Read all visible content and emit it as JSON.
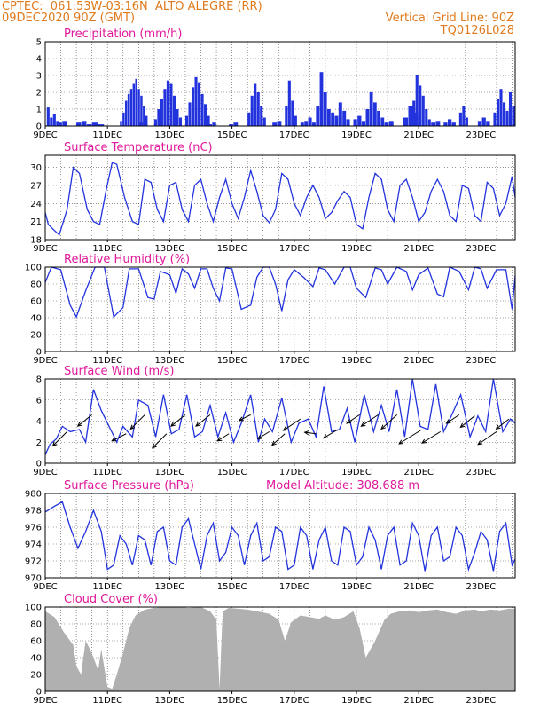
{
  "header": {
    "line1_left": "CPTEC:  061:53W-03:16N  ALTO ALEGRE (RR)",
    "line2_left": "09DEC2020 90Z (GMT)",
    "line1_right": "Vertical Grid Line: 90Z",
    "line2_right": "TQ0126L028"
  },
  "colors": {
    "header": "#e07a1c",
    "title": "#e0189a",
    "line": "#2233dd",
    "cloud": "#b0b0b0"
  },
  "x_ticks": [
    "9DEC",
    "11DEC",
    "13DEC",
    "15DEC",
    "17DEC",
    "19DEC",
    "21DEC",
    "23DEC"
  ],
  "chart_data": [
    {
      "type": "bar",
      "title": "Precipitation   (mm/h)",
      "ylim": [
        0,
        5
      ],
      "yticks": [
        0,
        1,
        2,
        3,
        4,
        5
      ],
      "x_start_day": 9,
      "x_end_day": 24.1,
      "events": [
        {
          "day": 9.05,
          "width": 0.4,
          "values": [
            1.1,
            0.5,
            0.7,
            0.3
          ]
        },
        {
          "day": 9.4,
          "width": 0.3,
          "values": [
            0.2,
            0.3
          ]
        },
        {
          "day": 10.0,
          "width": 0.5,
          "values": [
            0.2,
            0.3,
            0.1
          ]
        },
        {
          "day": 10.5,
          "width": 0.4,
          "values": [
            0.2,
            0.1
          ]
        },
        {
          "day": 11.4,
          "width": 0.9,
          "values": [
            0.3,
            0.8,
            1.5,
            1.9,
            2.2,
            2.5,
            2.8,
            2.2,
            1.8,
            1.2,
            0.6
          ]
        },
        {
          "day": 12.0,
          "width": 0.3,
          "values": [
            0.2,
            0.1
          ]
        },
        {
          "day": 12.5,
          "width": 0.9,
          "values": [
            0.4,
            1.0,
            1.6,
            2.2,
            2.7,
            2.5,
            1.8,
            1.0,
            0.5
          ]
        },
        {
          "day": 13.5,
          "width": 0.8,
          "values": [
            0.6,
            1.4,
            2.3,
            2.9,
            2.6,
            1.9,
            1.3,
            0.6
          ]
        },
        {
          "day": 14.1,
          "width": 0.4,
          "values": [
            0.2,
            0.1,
            0.2
          ]
        },
        {
          "day": 14.9,
          "width": 0.3,
          "values": [
            0.1,
            0.2
          ]
        },
        {
          "day": 15.5,
          "width": 0.6,
          "values": [
            0.8,
            1.8,
            2.5,
            2.0,
            1.2,
            0.5
          ]
        },
        {
          "day": 16.3,
          "width": 0.3,
          "values": [
            0.2,
            0.3
          ]
        },
        {
          "day": 16.7,
          "width": 0.4,
          "values": [
            1.2,
            2.7,
            1.5,
            0.6
          ]
        },
        {
          "day": 17.2,
          "width": 0.5,
          "values": [
            0.2,
            0.3,
            0.5,
            0.2
          ]
        },
        {
          "day": 17.7,
          "width": 0.6,
          "values": [
            1.2,
            3.2,
            2.0,
            1.0,
            0.8
          ]
        },
        {
          "day": 18.3,
          "width": 0.5,
          "values": [
            0.6,
            1.4,
            0.9,
            0.4
          ]
        },
        {
          "day": 18.9,
          "width": 0.4,
          "values": [
            0.4,
            0.6,
            0.3
          ]
        },
        {
          "day": 19.3,
          "width": 0.6,
          "values": [
            1.0,
            2.0,
            1.4,
            0.9,
            0.5
          ]
        },
        {
          "day": 19.9,
          "width": 0.3,
          "values": [
            0.2,
            0.3
          ]
        },
        {
          "day": 20.5,
          "width": 0.5,
          "values": [
            0.5,
            1.2,
            0.8
          ]
        },
        {
          "day": 20.8,
          "width": 0.6,
          "values": [
            1.5,
            3.0,
            2.4,
            1.8,
            1.0,
            0.4
          ]
        },
        {
          "day": 21.4,
          "width": 0.3,
          "values": [
            0.2,
            0.3
          ]
        },
        {
          "day": 21.8,
          "width": 0.4,
          "values": [
            0.2,
            0.4,
            0.2
          ]
        },
        {
          "day": 22.3,
          "width": 0.3,
          "values": [
            0.8,
            1.2,
            0.5
          ]
        },
        {
          "day": 22.9,
          "width": 0.4,
          "values": [
            0.3,
            0.5,
            0.3
          ]
        },
        {
          "day": 23.4,
          "width": 0.5,
          "values": [
            0.8,
            1.6,
            2.2,
            1.4,
            0.6
          ]
        },
        {
          "day": 23.8,
          "width": 0.3,
          "values": [
            0.9,
            2.0,
            1.2
          ]
        }
      ]
    },
    {
      "type": "line",
      "title": "Surface Temperature (nC)",
      "ylim": [
        18,
        32
      ],
      "yticks": [
        18,
        21,
        24,
        27,
        30
      ],
      "x": [
        9.0,
        9.1,
        9.3,
        9.45,
        9.7,
        9.9,
        10.1,
        10.35,
        10.55,
        10.75,
        10.95,
        11.15,
        11.3,
        11.55,
        11.8,
        12.0,
        12.2,
        12.4,
        12.6,
        12.8,
        13.0,
        13.2,
        13.4,
        13.6,
        13.8,
        14.0,
        14.2,
        14.4,
        14.6,
        14.8,
        15.0,
        15.2,
        15.4,
        15.6,
        15.8,
        16.0,
        16.2,
        16.4,
        16.6,
        16.8,
        17.0,
        17.2,
        17.4,
        17.6,
        17.8,
        18.0,
        18.2,
        18.4,
        18.6,
        18.8,
        19.0,
        19.2,
        19.4,
        19.6,
        19.8,
        20.0,
        20.2,
        20.4,
        20.6,
        20.8,
        21.0,
        21.2,
        21.4,
        21.6,
        21.8,
        22.0,
        22.2,
        22.4,
        22.6,
        22.8,
        23.0,
        23.2,
        23.4,
        23.6,
        23.8,
        24.0,
        24.1
      ],
      "y": [
        22.5,
        20.5,
        19.5,
        18.8,
        23,
        30,
        29,
        23,
        21,
        20.5,
        26,
        30.8,
        30.5,
        25,
        21,
        20.5,
        28,
        27.5,
        23,
        21,
        27,
        27.5,
        23,
        21,
        27,
        28,
        24,
        21,
        25,
        28,
        24,
        21.5,
        25,
        29.5,
        26,
        22,
        20.8,
        23,
        29,
        28,
        24,
        22,
        25,
        27,
        25,
        21.5,
        22.5,
        24.5,
        26,
        25,
        20.5,
        19.8,
        25,
        29,
        28,
        23,
        21,
        27,
        28,
        25,
        21,
        22.5,
        26,
        28,
        26,
        22,
        21,
        27,
        26.5,
        22,
        21,
        27.5,
        26.5,
        22,
        24,
        28.5,
        25
      ]
    },
    {
      "type": "line",
      "title": "Relative Humidity (%)",
      "ylim": [
        0,
        100
      ],
      "yticks": [
        0,
        20,
        40,
        60,
        80,
        100
      ],
      "x": [
        9.0,
        9.2,
        9.5,
        9.8,
        10.0,
        10.3,
        10.6,
        10.9,
        11.2,
        11.5,
        11.7,
        12.0,
        12.3,
        12.5,
        12.7,
        13.0,
        13.2,
        13.4,
        13.6,
        13.8,
        14.0,
        14.2,
        14.4,
        14.6,
        14.8,
        15.0,
        15.3,
        15.6,
        15.8,
        16.0,
        16.2,
        16.4,
        16.6,
        16.8,
        17.0,
        17.3,
        17.6,
        17.8,
        18.0,
        18.3,
        18.6,
        18.8,
        19.0,
        19.3,
        19.6,
        19.8,
        20.0,
        20.3,
        20.6,
        20.8,
        21.0,
        21.3,
        21.6,
        21.8,
        22.0,
        22.3,
        22.6,
        22.8,
        23.0,
        23.2,
        23.5,
        23.8,
        24.0,
        24.1
      ],
      "y": [
        82,
        100,
        97,
        55,
        41,
        72,
        100,
        100,
        41,
        52,
        98,
        98,
        64,
        62,
        95,
        91,
        69,
        98,
        92,
        75,
        98,
        98,
        75,
        60,
        99,
        98,
        50,
        55,
        88,
        100,
        100,
        80,
        48,
        85,
        97,
        88,
        77,
        99,
        97,
        80,
        100,
        100,
        75,
        64,
        99,
        97,
        80,
        100,
        95,
        73,
        91,
        99,
        68,
        65,
        100,
        95,
        73,
        100,
        98,
        75,
        97,
        97,
        50,
        90
      ]
    },
    {
      "type": "line",
      "title": "Surface Wind (m/s)",
      "ylim": [
        0,
        8
      ],
      "yticks": [
        0,
        2,
        4,
        6,
        8
      ],
      "x": [
        9.0,
        9.15,
        9.35,
        9.55,
        9.8,
        10.1,
        10.3,
        10.55,
        10.8,
        11.05,
        11.3,
        11.5,
        11.8,
        12.0,
        12.3,
        12.55,
        12.8,
        13.05,
        13.3,
        13.55,
        13.8,
        14.05,
        14.3,
        14.55,
        14.8,
        15.05,
        15.3,
        15.6,
        15.85,
        16.05,
        16.3,
        16.6,
        16.9,
        17.15,
        17.45,
        17.7,
        17.95,
        18.2,
        18.45,
        18.7,
        18.95,
        19.25,
        19.55,
        19.8,
        20.05,
        20.3,
        20.55,
        20.8,
        21.05,
        21.3,
        21.55,
        21.8,
        22.05,
        22.35,
        22.65,
        22.9,
        23.15,
        23.4,
        23.7,
        23.95,
        24.1
      ],
      "y": [
        0.8,
        1.8,
        2.3,
        3.5,
        3.0,
        3.2,
        2.0,
        7.0,
        5.0,
        3.5,
        2.0,
        3.5,
        2.5,
        6.0,
        5.5,
        2.5,
        6.5,
        2.8,
        3.2,
        6.5,
        2.5,
        3.0,
        5.5,
        2.5,
        4.8,
        2.0,
        3.8,
        6.5,
        2.0,
        4.2,
        3.0,
        6.2,
        2.0,
        3.8,
        4.2,
        2.5,
        7.3,
        3.0,
        3.2,
        5.2,
        2.0,
        6.5,
        3.0,
        5.5,
        3.0,
        7.0,
        2.5,
        8.0,
        3.5,
        3.2,
        7.5,
        3.0,
        4.5,
        6.5,
        2.5,
        4.5,
        3.0,
        8.0,
        3.0,
        4.2,
        3.8
      ],
      "arrows": [
        {
          "day": 9.7,
          "u": -1.0,
          "v": -1.0
        },
        {
          "day": 10.5,
          "u": -1.0,
          "v": -0.8
        },
        {
          "day": 11.6,
          "u": -1.0,
          "v": -0.5
        },
        {
          "day": 12.2,
          "u": -1.0,
          "v": -1.0
        },
        {
          "day": 12.9,
          "u": -1.0,
          "v": -1.0
        },
        {
          "day": 13.5,
          "u": -1.0,
          "v": -0.8
        },
        {
          "day": 14.3,
          "u": -1.0,
          "v": -0.8
        },
        {
          "day": 14.9,
          "u": -0.8,
          "v": -0.5
        },
        {
          "day": 15.6,
          "u": -0.8,
          "v": -0.4
        },
        {
          "day": 16.2,
          "u": -0.8,
          "v": -0.5
        },
        {
          "day": 16.7,
          "u": -0.9,
          "v": -0.8
        },
        {
          "day": 17.2,
          "u": -1.2,
          "v": -0.8
        },
        {
          "day": 17.7,
          "u": -0.8,
          "v": 0.1
        },
        {
          "day": 18.4,
          "u": -1.0,
          "v": -0.6
        },
        {
          "day": 19.1,
          "u": -0.9,
          "v": -0.6
        },
        {
          "day": 19.7,
          "u": -1.2,
          "v": -0.8
        },
        {
          "day": 20.3,
          "u": -1.1,
          "v": -1.0
        },
        {
          "day": 21.1,
          "u": -1.6,
          "v": -1.0
        },
        {
          "day": 21.7,
          "u": -1.3,
          "v": -0.8
        },
        {
          "day": 22.3,
          "u": -0.9,
          "v": -0.6
        },
        {
          "day": 22.8,
          "u": -1.0,
          "v": -0.8
        },
        {
          "day": 23.5,
          "u": -1.3,
          "v": -0.9
        },
        {
          "day": 23.9,
          "u": -0.9,
          "v": -0.7
        }
      ]
    },
    {
      "type": "line",
      "title": "Surface Pressure (hPa)",
      "annotation": "Model Altitude: 308.688 m",
      "ylim": [
        970,
        980
      ],
      "yticks": [
        970,
        972,
        974,
        976,
        978,
        980
      ],
      "x": [
        9.0,
        9.3,
        9.55,
        9.8,
        10.05,
        10.3,
        10.55,
        10.8,
        11.0,
        11.2,
        11.4,
        11.6,
        11.8,
        12.0,
        12.2,
        12.4,
        12.6,
        12.8,
        13.0,
        13.2,
        13.4,
        13.6,
        13.8,
        14.0,
        14.2,
        14.4,
        14.6,
        14.8,
        15.0,
        15.2,
        15.4,
        15.6,
        15.8,
        16.0,
        16.2,
        16.4,
        16.6,
        16.8,
        17.0,
        17.2,
        17.4,
        17.6,
        17.8,
        18.0,
        18.2,
        18.4,
        18.6,
        18.8,
        19.0,
        19.2,
        19.4,
        19.6,
        19.8,
        20.0,
        20.2,
        20.4,
        20.6,
        20.8,
        21.0,
        21.2,
        21.4,
        21.6,
        21.8,
        22.0,
        22.2,
        22.4,
        22.6,
        22.8,
        23.0,
        23.2,
        23.4,
        23.6,
        23.8,
        24.0,
        24.1
      ],
      "y": [
        977.8,
        978.5,
        979.0,
        976.0,
        973.5,
        975.5,
        978.0,
        975.5,
        971.0,
        971.5,
        975.0,
        974.0,
        971.5,
        975.0,
        974.5,
        971.5,
        975.5,
        976.0,
        972.0,
        971.5,
        976.0,
        977.0,
        974.0,
        971.0,
        975.0,
        976.5,
        972.0,
        973.0,
        976.0,
        975.0,
        971.5,
        975.0,
        976.5,
        972.0,
        972.5,
        976.0,
        975.5,
        971.0,
        971.5,
        976.0,
        975.0,
        971.0,
        974.5,
        976.0,
        972.0,
        971.5,
        976.0,
        975.5,
        971.5,
        972.5,
        976.0,
        974.5,
        971.0,
        975.0,
        976.0,
        971.5,
        972.0,
        976.5,
        975.0,
        970.8,
        975.0,
        976.0,
        972.0,
        972.5,
        976.0,
        975.0,
        971.0,
        973.0,
        975.5,
        974.5,
        970.8,
        975.5,
        976.5,
        971.5,
        972.2
      ]
    },
    {
      "type": "area",
      "title": "Cloud Cover (%)",
      "ylim": [
        0,
        100
      ],
      "yticks": [
        0,
        20,
        40,
        60,
        80,
        100
      ],
      "x": [
        9.0,
        9.3,
        9.6,
        9.9,
        10.0,
        10.15,
        10.3,
        10.5,
        10.7,
        10.8,
        11.0,
        11.15,
        11.3,
        11.5,
        11.7,
        11.9,
        12.2,
        12.5,
        12.8,
        13.2,
        13.6,
        14.0,
        14.3,
        14.5,
        14.6,
        14.7,
        14.9,
        15.2,
        15.5,
        15.8,
        16.2,
        16.5,
        16.7,
        16.9,
        17.2,
        17.5,
        17.8,
        18.0,
        18.3,
        18.6,
        18.9,
        19.1,
        19.3,
        19.6,
        19.9,
        20.1,
        20.4,
        20.7,
        21.0,
        21.3,
        21.6,
        21.9,
        22.2,
        22.5,
        22.8,
        23.0,
        23.3,
        23.6,
        23.9,
        24.1
      ],
      "y": [
        95,
        88,
        70,
        55,
        30,
        20,
        60,
        45,
        25,
        50,
        5,
        3,
        20,
        45,
        75,
        90,
        97,
        99,
        100,
        100,
        99,
        100,
        95,
        85,
        3,
        95,
        99,
        98,
        97,
        95,
        92,
        85,
        60,
        82,
        90,
        88,
        86,
        90,
        85,
        88,
        95,
        75,
        40,
        60,
        85,
        92,
        95,
        96,
        94,
        96,
        97,
        94,
        92,
        96,
        97,
        95,
        97,
        96,
        98,
        98
      ]
    }
  ]
}
